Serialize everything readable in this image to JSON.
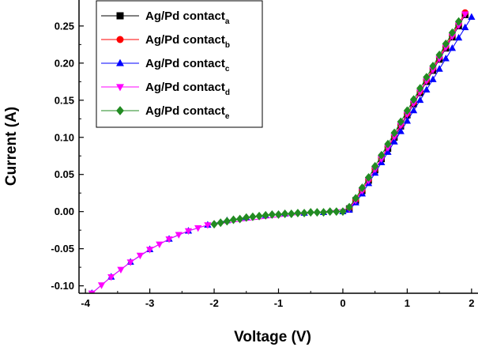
{
  "chart_data": {
    "type": "scatter",
    "xlabel": "Voltage (V)",
    "ylabel": "Current (A)",
    "xlim": [
      -4.1,
      2.1
    ],
    "ylim": [
      -0.11,
      0.285
    ],
    "x_ticks": [
      "-4",
      "-3",
      "-2",
      "-1",
      "0",
      "1",
      "2"
    ],
    "y_ticks": [
      "-0.10",
      "-0.05",
      "0.00",
      "0.05",
      "0.10",
      "0.15",
      "0.20",
      "0.25"
    ],
    "grid": false,
    "legend_position": "top-left",
    "series": [
      {
        "name": "Ag/Pd contact",
        "subscript": "a",
        "color": "#000000",
        "marker": "square",
        "x": [
          0.1,
          0.2,
          0.3,
          0.4,
          0.5,
          0.6,
          0.7,
          0.8,
          0.9,
          1.0,
          1.1,
          1.2,
          1.3,
          1.4,
          1.5,
          1.6,
          1.7,
          1.8,
          1.9
        ],
        "y": [
          0.004,
          0.015,
          0.028,
          0.042,
          0.056,
          0.071,
          0.085,
          0.1,
          0.115,
          0.13,
          0.145,
          0.16,
          0.175,
          0.19,
          0.205,
          0.22,
          0.235,
          0.25,
          0.265
        ]
      },
      {
        "name": "Ag/Pd contact",
        "subscript": "b",
        "color": "#ff0000",
        "marker": "circle",
        "x": [
          0.1,
          0.2,
          0.3,
          0.4,
          0.5,
          0.6,
          0.7,
          0.8,
          0.9,
          1.0,
          1.1,
          1.2,
          1.3,
          1.4,
          1.5,
          1.6,
          1.7,
          1.8,
          1.9
        ],
        "y": [
          0.005,
          0.016,
          0.029,
          0.043,
          0.057,
          0.072,
          0.087,
          0.102,
          0.117,
          0.132,
          0.147,
          0.162,
          0.177,
          0.193,
          0.208,
          0.223,
          0.238,
          0.253,
          0.268
        ]
      },
      {
        "name": "Ag/Pd contact",
        "subscript": "c",
        "color": "#0000ff",
        "marker": "triangle-up",
        "x": [
          -3.9,
          -3.6,
          -3.3,
          -3.0,
          -2.7,
          -2.4,
          -2.1,
          -1.8,
          -1.5,
          -1.2,
          -0.9,
          -0.6,
          -0.3,
          0.0,
          0.1,
          0.2,
          0.3,
          0.4,
          0.5,
          0.6,
          0.7,
          0.8,
          0.9,
          1.0,
          1.1,
          1.2,
          1.3,
          1.4,
          1.5,
          1.6,
          1.7,
          1.8,
          1.9,
          2.0
        ],
        "y": [
          -0.11,
          -0.088,
          -0.068,
          -0.051,
          -0.037,
          -0.026,
          -0.018,
          -0.012,
          -0.008,
          -0.005,
          -0.003,
          -0.002,
          -0.001,
          0.0,
          0.002,
          0.012,
          0.024,
          0.038,
          0.052,
          0.066,
          0.08,
          0.094,
          0.108,
          0.122,
          0.136,
          0.15,
          0.164,
          0.178,
          0.192,
          0.206,
          0.22,
          0.234,
          0.248,
          0.262
        ]
      },
      {
        "name": "Ag/Pd contact",
        "subscript": "d",
        "color": "#ff00ff",
        "marker": "triangle-down",
        "x": [
          -3.9,
          -3.75,
          -3.6,
          -3.45,
          -3.3,
          -3.15,
          -3.0,
          -2.85,
          -2.7,
          -2.55,
          -2.4,
          -2.25,
          -2.1,
          0.1,
          0.2,
          0.3,
          0.4,
          0.5,
          0.6,
          0.7,
          0.8,
          0.9,
          1.0,
          1.1,
          1.2,
          1.3,
          1.4,
          1.5,
          1.6,
          1.7,
          1.8,
          1.9
        ],
        "y": [
          -0.11,
          -0.099,
          -0.088,
          -0.078,
          -0.068,
          -0.059,
          -0.051,
          -0.044,
          -0.037,
          -0.031,
          -0.026,
          -0.022,
          -0.018,
          0.004,
          0.015,
          0.028,
          0.042,
          0.057,
          0.071,
          0.086,
          0.101,
          0.116,
          0.131,
          0.146,
          0.161,
          0.176,
          0.191,
          0.206,
          0.221,
          0.236,
          0.251,
          0.266
        ]
      },
      {
        "name": "Ag/Pd contact",
        "subscript": "e",
        "color": "#228b22",
        "marker": "diamond",
        "x": [
          -2.0,
          -1.9,
          -1.8,
          -1.7,
          -1.6,
          -1.5,
          -1.4,
          -1.3,
          -1.2,
          -1.1,
          -1.0,
          -0.9,
          -0.8,
          -0.7,
          -0.6,
          -0.5,
          -0.4,
          -0.3,
          -0.2,
          -0.1,
          0.0,
          0.1,
          0.2,
          0.3,
          0.4,
          0.5,
          0.6,
          0.7,
          0.8,
          0.9,
          1.0,
          1.1,
          1.2,
          1.3,
          1.4,
          1.5,
          1.6,
          1.7,
          1.8
        ],
        "y": [
          -0.017,
          -0.015,
          -0.013,
          -0.011,
          -0.01,
          -0.008,
          -0.007,
          -0.006,
          -0.005,
          -0.004,
          -0.004,
          -0.003,
          -0.003,
          -0.002,
          -0.002,
          -0.001,
          -0.001,
          -0.001,
          0.0,
          0.0,
          0.0,
          0.006,
          0.018,
          0.032,
          0.046,
          0.061,
          0.076,
          0.091,
          0.106,
          0.121,
          0.136,
          0.151,
          0.166,
          0.181,
          0.196,
          0.211,
          0.226,
          0.241,
          0.256
        ]
      }
    ]
  }
}
